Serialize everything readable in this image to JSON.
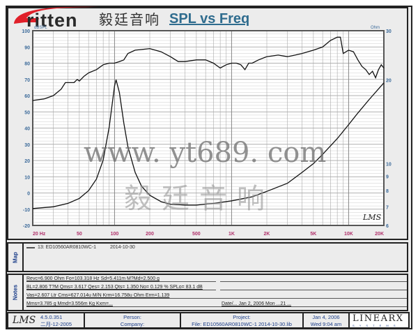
{
  "header": {
    "logo_text": "ritten",
    "logo_cn": "毅廷音响",
    "title": "SPL vs Freq"
  },
  "chart_data": {
    "type": "line",
    "title": "SPL vs Freq",
    "x_scale": "log",
    "xlim": [
      20,
      20000
    ],
    "x_ticks": [
      20,
      50,
      100,
      200,
      500,
      1000,
      2000,
      5000,
      10000,
      20000
    ],
    "x_tick_labels": [
      "20  Hz",
      "50",
      "100",
      "200",
      "500",
      "1K",
      "2K",
      "5K",
      "10K",
      "20K"
    ],
    "y_left": {
      "label": "dBSPL",
      "lim": [
        -20,
        100
      ],
      "ticks": [
        -20,
        -10,
        0,
        10,
        20,
        30,
        40,
        50,
        60,
        70,
        80,
        90,
        100
      ]
    },
    "y_right": {
      "label": "Ohm",
      "scale": "log",
      "lim": [
        6,
        30
      ],
      "ticks": [
        6,
        7,
        8,
        9,
        10,
        20,
        30
      ]
    },
    "grid": true,
    "series": [
      {
        "axis": "left",
        "color": "#111111",
        "x": [
          20,
          25,
          30,
          35,
          38,
          40,
          45,
          48,
          50,
          55,
          60,
          70,
          80,
          90,
          100,
          110,
          120,
          130,
          150,
          200,
          250,
          300,
          350,
          400,
          500,
          600,
          700,
          800,
          900,
          1000,
          1100,
          1200,
          1300,
          1400,
          1500,
          1700,
          2000,
          2500,
          3000,
          3500,
          4000,
          5000,
          6000,
          7000,
          8000,
          8500,
          9000,
          10000,
          11000,
          12000,
          13000,
          14000,
          15000,
          16000,
          17000,
          18000,
          19000,
          20000
        ],
        "y": [
          57,
          58,
          60,
          64,
          68,
          68,
          68,
          70,
          69,
          72,
          74,
          76,
          79,
          80,
          80,
          81,
          82,
          86,
          88,
          89,
          87,
          84,
          81,
          81,
          82,
          82,
          80,
          77,
          79,
          80,
          80,
          79,
          76,
          80,
          80,
          82,
          84,
          85,
          84,
          85,
          86,
          88,
          90,
          94,
          96,
          96,
          86,
          88,
          87,
          82,
          78,
          76,
          73,
          75,
          71,
          76,
          79,
          77
        ]
      },
      {
        "axis": "right",
        "color": "#111111",
        "x": [
          20,
          30,
          40,
          50,
          60,
          70,
          80,
          90,
          100,
          103,
          110,
          120,
          130,
          150,
          170,
          200,
          250,
          300,
          400,
          500,
          700,
          1000,
          1500,
          2000,
          3000,
          4000,
          5000,
          6000,
          8000,
          10000,
          12000,
          15000,
          20000
        ],
        "y": [
          6.9,
          7.0,
          7.2,
          7.5,
          8.0,
          8.8,
          10.3,
          13.5,
          19.0,
          20.0,
          18.0,
          14.0,
          11.5,
          9.3,
          8.3,
          7.7,
          7.3,
          7.15,
          7.1,
          7.1,
          7.2,
          7.35,
          7.6,
          7.95,
          8.5,
          9.3,
          10.0,
          10.8,
          12.3,
          13.8,
          15.2,
          17.0,
          19.5
        ]
      }
    ],
    "annotation": "LMS"
  },
  "map": {
    "label": "Map",
    "legend": "13: ED10560AR0810WC-1",
    "date": "2014-10-30"
  },
  "notes": {
    "label": "Notes",
    "lines": [
      "Revc=6.900 Ohm  Fo=103.318 Hz  Sd=5.411m M?Md=2.500 g",
      "BL=2.806 T?M  Qms= 3.617  Qes= 2.153  Qts= 1.350  No= 0.129 %  SPLo= 83.1 dB",
      "Vas=2.607 Ltr  Cms=627.014u M/N  Krm=16.758u Ohm  Erm=1.139",
      "Mms=3.785 g  Mmd=3.556m Kg  Kxm=..."
    ],
    "right_line": "Date/... Jan 2, 2006  Mon ...21 ..."
  },
  "footer": {
    "lms_logo": "LMS",
    "version": "4.5.0.351",
    "build_date": "二月-12-2005",
    "person_label": "Person:",
    "company_label": "Company:",
    "project_label": "Project:",
    "file": "File: ED10560AR0810WC-1   2014-10-30.lib",
    "date": "Jan  4, 2006",
    "time": "Wed  9:04 am",
    "brand": "LINEARX",
    "brand_sub": "S Y S T E M S"
  },
  "watermark": {
    "cn": "毅廷音响",
    "url": "www. yt689. com"
  },
  "colors": {
    "title": "#2f6c8e",
    "axis_label": "#3b6a9a",
    "x_tick": "#b0306a",
    "logo_red": "#e0202a"
  }
}
